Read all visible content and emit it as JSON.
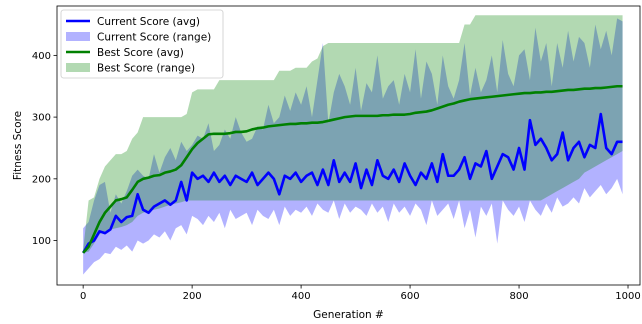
{
  "chart_data": {
    "type": "line",
    "title": "",
    "xlabel": "Generation #",
    "ylabel": "Fitness Score",
    "xlim": [
      -48,
      1022
    ],
    "ylim": [
      28,
      480
    ],
    "xticks": [
      0,
      200,
      400,
      600,
      800,
      1000
    ],
    "yticks": [
      100,
      200,
      300,
      400
    ],
    "grid": false,
    "legend": {
      "position": "top-left",
      "entries": [
        {
          "label": "Current Score (avg)",
          "kind": "line",
          "color": "#0000ff"
        },
        {
          "label": "Current Score (range)",
          "kind": "band",
          "color": "#0000ff"
        },
        {
          "label": "Best Score (avg)",
          "kind": "line",
          "color": "#008000"
        },
        {
          "label": "Best Score (range)",
          "kind": "band",
          "color": "#008000"
        }
      ]
    },
    "series": [
      {
        "name": "Current Score (avg)",
        "kind": "line",
        "color": "#0000ff",
        "x": [
          0,
          10,
          20,
          30,
          40,
          50,
          60,
          70,
          80,
          90,
          100,
          110,
          120,
          130,
          140,
          150,
          160,
          170,
          180,
          190,
          200,
          210,
          220,
          230,
          240,
          250,
          260,
          270,
          280,
          290,
          300,
          310,
          320,
          330,
          340,
          350,
          360,
          370,
          380,
          390,
          400,
          410,
          420,
          430,
          440,
          450,
          460,
          470,
          480,
          490,
          500,
          510,
          520,
          530,
          540,
          550,
          560,
          570,
          580,
          590,
          600,
          610,
          620,
          630,
          640,
          650,
          660,
          670,
          680,
          690,
          700,
          710,
          720,
          730,
          740,
          750,
          760,
          770,
          780,
          790,
          800,
          810,
          820,
          830,
          840,
          850,
          860,
          870,
          880,
          890,
          900,
          910,
          920,
          930,
          940,
          950,
          960,
          970,
          980,
          990
        ],
        "y": [
          80,
          95,
          100,
          115,
          112,
          118,
          140,
          130,
          138,
          140,
          175,
          150,
          145,
          155,
          160,
          165,
          158,
          165,
          195,
          165,
          210,
          200,
          205,
          195,
          210,
          195,
          205,
          190,
          205,
          200,
          195,
          210,
          190,
          200,
          210,
          200,
          175,
          205,
          200,
          210,
          195,
          205,
          210,
          190,
          215,
          190,
          230,
          195,
          210,
          195,
          225,
          185,
          215,
          190,
          230,
          205,
          200,
          215,
          195,
          225,
          205,
          190,
          210,
          200,
          225,
          195,
          240,
          205,
          205,
          215,
          235,
          200,
          225,
          220,
          245,
          200,
          220,
          240,
          235,
          215,
          250,
          215,
          295,
          255,
          265,
          250,
          230,
          240,
          275,
          230,
          250,
          260,
          235,
          255,
          250,
          305,
          250,
          240,
          260,
          260
        ]
      },
      {
        "name": "Current Score (range)",
        "kind": "band",
        "color": "#0000ff",
        "x": [
          0,
          10,
          20,
          30,
          40,
          50,
          60,
          70,
          80,
          90,
          100,
          110,
          120,
          130,
          140,
          150,
          160,
          170,
          180,
          190,
          200,
          210,
          220,
          230,
          240,
          250,
          260,
          270,
          280,
          290,
          300,
          310,
          320,
          330,
          340,
          350,
          360,
          370,
          380,
          390,
          400,
          410,
          420,
          430,
          440,
          450,
          460,
          470,
          480,
          490,
          500,
          510,
          520,
          530,
          540,
          550,
          560,
          570,
          580,
          590,
          600,
          610,
          620,
          630,
          640,
          650,
          660,
          670,
          680,
          690,
          700,
          710,
          720,
          730,
          740,
          750,
          760,
          770,
          780,
          790,
          800,
          810,
          820,
          830,
          840,
          850,
          860,
          870,
          880,
          890,
          900,
          910,
          920,
          930,
          940,
          950,
          960,
          970,
          980,
          990
        ],
        "y_low": [
          45,
          55,
          65,
          70,
          80,
          78,
          90,
          85,
          92,
          82,
          100,
          95,
          100,
          110,
          105,
          115,
          100,
          120,
          125,
          110,
          140,
          135,
          125,
          140,
          130,
          145,
          120,
          150,
          135,
          140,
          145,
          125,
          150,
          140,
          135,
          150,
          125,
          155,
          140,
          150,
          145,
          155,
          140,
          160,
          150,
          145,
          165,
          135,
          160,
          145,
          155,
          150,
          140,
          160,
          145,
          155,
          130,
          160,
          145,
          155,
          140,
          160,
          150,
          125,
          165,
          140,
          150,
          160,
          135,
          165,
          120,
          150,
          105,
          155,
          140,
          160,
          95,
          165,
          150,
          140,
          155,
          130,
          165,
          150,
          140,
          160,
          145,
          170,
          155,
          160,
          170,
          160,
          185,
          170,
          180,
          190,
          175,
          185,
          200,
          175
        ],
        "y_high": [
          120,
          130,
          165,
          190,
          195,
          145,
          175,
          160,
          180,
          205,
          215,
          205,
          200,
          240,
          210,
          235,
          250,
          230,
          260,
          245,
          255,
          270,
          265,
          290,
          245,
          255,
          280,
          265,
          300,
          275,
          260,
          265,
          285,
          280,
          320,
          290,
          300,
          335,
          310,
          340,
          320,
          350,
          300,
          360,
          420,
          290,
          340,
          370,
          350,
          320,
          380,
          310,
          355,
          340,
          400,
          330,
          350,
          360,
          320,
          370,
          340,
          410,
          330,
          390,
          370,
          320,
          400,
          350,
          330,
          360,
          420,
          335,
          380,
          340,
          360,
          400,
          340,
          425,
          370,
          350,
          400,
          410,
          360,
          445,
          390,
          420,
          350,
          420,
          380,
          440,
          390,
          430,
          420,
          380,
          450,
          410,
          440,
          400,
          460,
          455
        ]
      },
      {
        "name": "Best Score (avg)",
        "kind": "line",
        "color": "#008000",
        "x": [
          0,
          10,
          20,
          30,
          40,
          50,
          60,
          70,
          80,
          90,
          100,
          110,
          120,
          130,
          140,
          150,
          160,
          170,
          180,
          190,
          200,
          210,
          220,
          230,
          240,
          250,
          260,
          270,
          280,
          290,
          300,
          310,
          320,
          330,
          340,
          350,
          360,
          370,
          380,
          390,
          400,
          410,
          420,
          430,
          440,
          450,
          460,
          470,
          480,
          490,
          500,
          510,
          520,
          530,
          540,
          550,
          560,
          570,
          580,
          590,
          600,
          610,
          620,
          630,
          640,
          650,
          660,
          670,
          680,
          690,
          700,
          710,
          720,
          730,
          740,
          750,
          760,
          770,
          780,
          790,
          800,
          810,
          820,
          830,
          840,
          850,
          860,
          870,
          880,
          890,
          900,
          910,
          920,
          930,
          940,
          950,
          960,
          970,
          980,
          990
        ],
        "y": [
          80,
          90,
          110,
          130,
          145,
          155,
          165,
          167,
          170,
          182,
          195,
          200,
          202,
          205,
          206,
          210,
          212,
          215,
          222,
          235,
          248,
          258,
          265,
          272,
          273,
          273,
          273,
          274,
          276,
          276,
          277,
          280,
          282,
          283,
          285,
          286,
          287,
          288,
          289,
          289,
          290,
          290,
          291,
          291,
          292,
          294,
          296,
          298,
          300,
          301,
          302,
          302,
          302,
          302,
          302,
          303,
          303,
          304,
          304,
          304,
          305,
          307,
          308,
          309,
          311,
          314,
          317,
          320,
          322,
          325,
          327,
          329,
          330,
          331,
          332,
          333,
          334,
          335,
          336,
          337,
          338,
          339,
          339,
          340,
          340,
          341,
          341,
          342,
          343,
          344,
          344,
          345,
          346,
          346,
          347,
          347,
          348,
          349,
          350,
          350
        ]
      },
      {
        "name": "Best Score (range)",
        "kind": "band",
        "color": "#008000",
        "x": [
          0,
          10,
          20,
          30,
          40,
          50,
          60,
          70,
          80,
          90,
          100,
          110,
          120,
          130,
          140,
          150,
          160,
          170,
          180,
          190,
          200,
          210,
          220,
          230,
          240,
          250,
          260,
          270,
          280,
          290,
          300,
          310,
          320,
          330,
          340,
          350,
          360,
          370,
          380,
          390,
          400,
          410,
          420,
          430,
          440,
          450,
          460,
          470,
          480,
          490,
          500,
          510,
          520,
          530,
          540,
          550,
          560,
          570,
          580,
          590,
          600,
          610,
          620,
          630,
          640,
          650,
          660,
          670,
          680,
          690,
          700,
          710,
          720,
          730,
          740,
          750,
          760,
          770,
          780,
          790,
          800,
          810,
          820,
          830,
          840,
          850,
          860,
          870,
          880,
          890,
          900,
          910,
          920,
          930,
          940,
          950,
          960,
          970,
          980,
          990
        ],
        "y_low": [
          80,
          82,
          95,
          110,
          115,
          118,
          120,
          122,
          125,
          130,
          140,
          145,
          148,
          150,
          152,
          155,
          158,
          160,
          162,
          165,
          165,
          165,
          165,
          165,
          165,
          165,
          165,
          165,
          165,
          165,
          165,
          165,
          165,
          165,
          165,
          165,
          165,
          165,
          165,
          165,
          165,
          165,
          165,
          165,
          165,
          165,
          165,
          165,
          165,
          165,
          165,
          165,
          165,
          165,
          165,
          165,
          165,
          165,
          165,
          165,
          165,
          165,
          165,
          165,
          165,
          165,
          165,
          165,
          165,
          165,
          165,
          165,
          165,
          165,
          165,
          165,
          165,
          165,
          165,
          165,
          165,
          165,
          165,
          165,
          165,
          170,
          175,
          180,
          185,
          190,
          195,
          200,
          210,
          215,
          220,
          225,
          230,
          235,
          240,
          245
        ],
        "y_high": [
          85,
          165,
          170,
          200,
          220,
          230,
          240,
          240,
          245,
          265,
          275,
          300,
          300,
          300,
          300,
          300,
          300,
          300,
          300,
          305,
          340,
          345,
          345,
          345,
          345,
          360,
          360,
          360,
          360,
          360,
          360,
          360,
          360,
          360,
          360,
          360,
          375,
          375,
          375,
          380,
          380,
          380,
          390,
          395,
          415,
          420,
          420,
          420,
          420,
          420,
          420,
          420,
          420,
          420,
          420,
          420,
          420,
          420,
          420,
          420,
          420,
          420,
          420,
          420,
          420,
          420,
          420,
          420,
          420,
          420,
          450,
          450,
          465,
          465,
          465,
          465,
          465,
          465,
          465,
          465,
          465,
          465,
          465,
          465,
          465,
          465,
          465,
          465,
          465,
          465,
          465,
          465,
          465,
          465,
          465,
          465,
          465,
          465,
          465,
          465
        ]
      }
    ]
  }
}
